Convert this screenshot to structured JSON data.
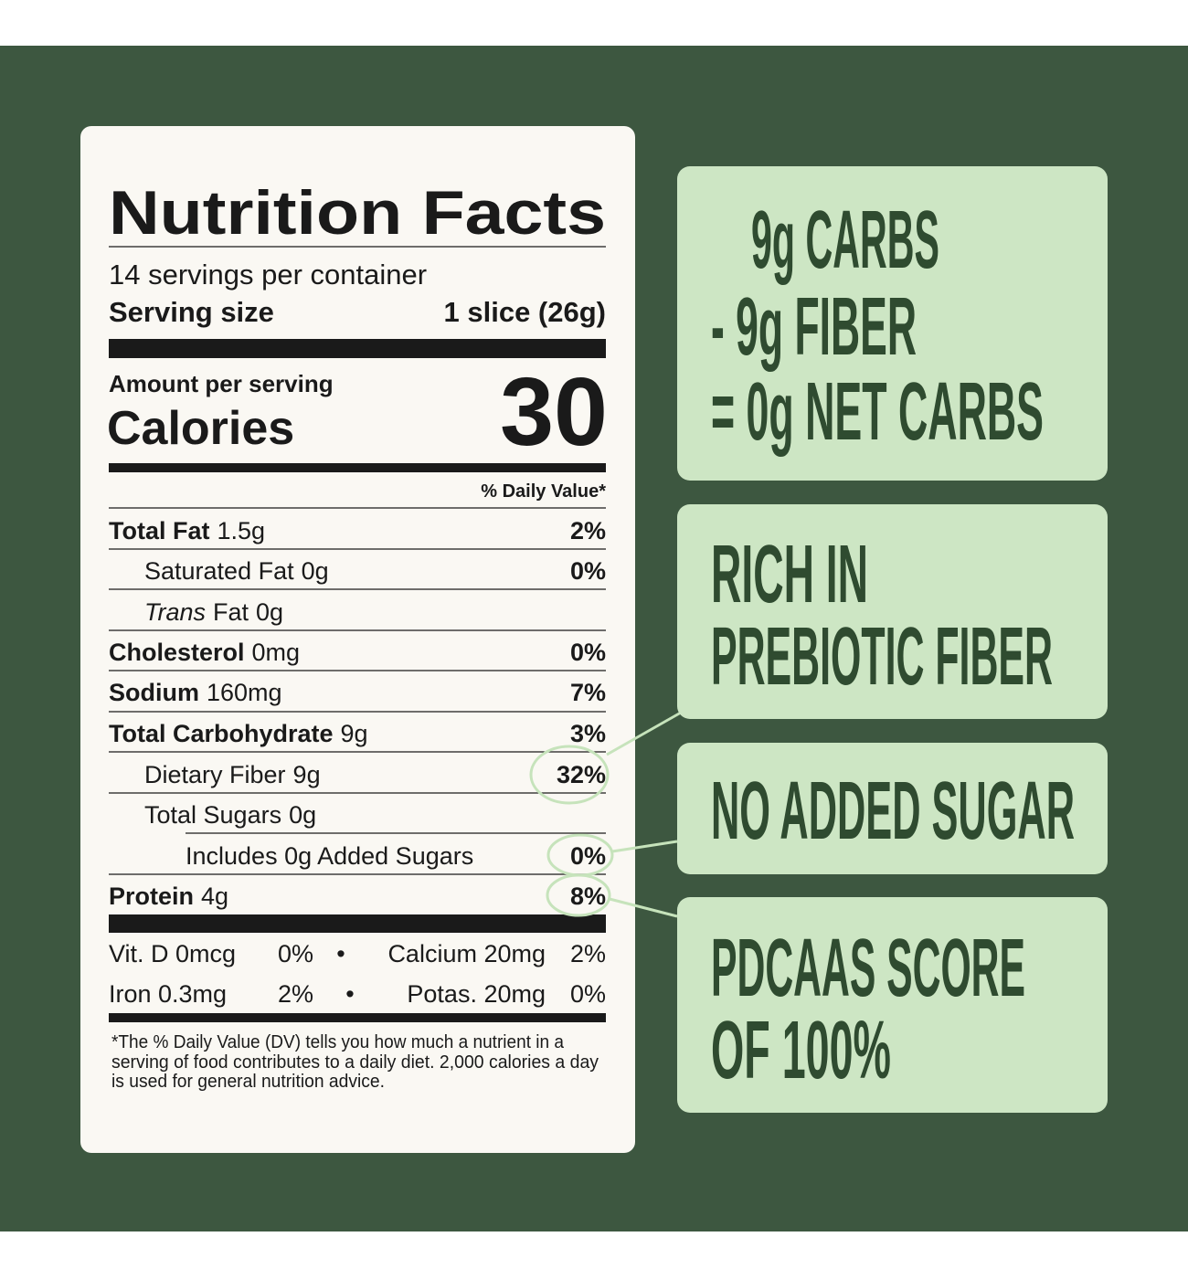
{
  "label": {
    "title": "Nutrition Facts",
    "servings": "14 servings per container",
    "serving_size_label": "Serving size",
    "serving_size": "1 slice (26g)",
    "amount_per_serving": "Amount per serving",
    "calories_label": "Calories",
    "calories": "30",
    "daily_value_header": "% Daily Value*",
    "rows": [
      {
        "name": "Total Fat",
        "amount": "1.5g",
        "dv": "2%"
      },
      {
        "name": "Saturated Fat",
        "amount": "0g",
        "dv": "0%"
      },
      {
        "prefix": "Trans",
        "name": "Fat",
        "amount": "0g"
      },
      {
        "name": "Cholesterol",
        "amount": "0mg",
        "dv": "0%"
      },
      {
        "name": "Sodium",
        "amount": "160mg",
        "dv": "7%"
      },
      {
        "name": "Total Carbohydrate",
        "amount": "9g",
        "dv": "3%"
      },
      {
        "name": "Dietary Fiber",
        "amount": "9g",
        "dv": "32%"
      },
      {
        "name": "Total Sugars",
        "amount": "0g"
      },
      {
        "name": "Includes 0g Added Sugars",
        "dv": "0%"
      },
      {
        "name": "Protein",
        "amount": "4g",
        "dv": "8%"
      }
    ],
    "vitamins": [
      {
        "name": "Vit. D 0mcg",
        "dv": "0%"
      },
      {
        "name": "Calcium 20mg",
        "dv": "2%"
      },
      {
        "name": "Iron 0.3mg",
        "dv": "2%"
      },
      {
        "name": "Potas. 20mg",
        "dv": "0%"
      }
    ],
    "bullet": "•",
    "footnote": [
      "*The % Daily Value (DV) tells you how much a nutrient in a",
      "serving of food contributes to a daily diet. 2,000 calories a day",
      "is used for general nutrition advice."
    ]
  },
  "callouts": [
    {
      "lines": [
        "9g CARBS",
        "- 9g FIBER",
        "= 0g NET CARBS"
      ]
    },
    {
      "lines": [
        "RICH IN",
        "PREBIOTIC FIBER"
      ]
    },
    {
      "lines": [
        "NO ADDED SUGAR"
      ]
    },
    {
      "lines": [
        "PDCAAS SCORE",
        "OF 100%"
      ]
    }
  ]
}
